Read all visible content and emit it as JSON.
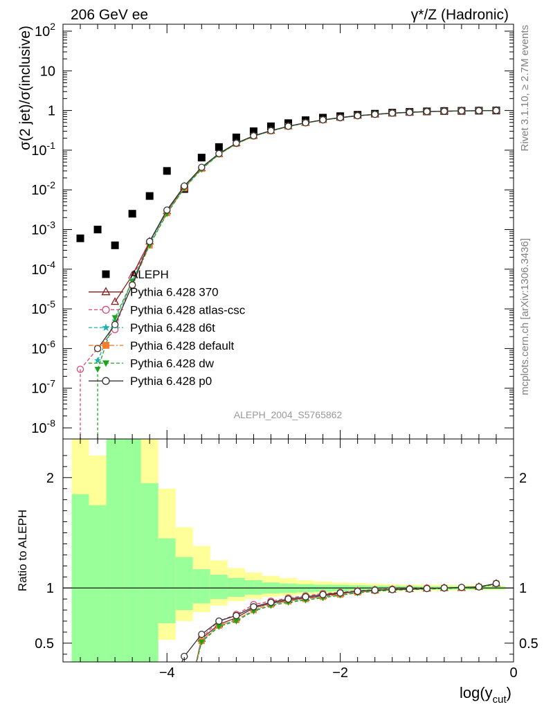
{
  "header": {
    "left": "206 GeV ee",
    "right": "γ*/Z (Hadronic)"
  },
  "side_text": {
    "rivet": "Rivet 3.1.10, ≥ 2.7M events",
    "mcplots": "mcplots.cern.ch [arXiv:1306.3436]"
  },
  "analysis_label": "ALEPH_2004_S5765862",
  "chart_data": [
    {
      "type": "scatter",
      "panel": "main",
      "ylabel": "σ(2 jet)/σ(inclusive)",
      "yscale": "log",
      "ylim": [
        5e-09,
        150
      ],
      "xlim": [
        -5.2,
        0
      ],
      "y_ticks": [
        "10^-8",
        "10^-7",
        "10^-6",
        "10^-5",
        "10^-4",
        "10^-3",
        "10^-2",
        "10^-1",
        "1",
        "10",
        "10^2"
      ],
      "legend_position": "middle-left",
      "series": [
        {
          "name": "ALEPH",
          "color": "#000000",
          "marker": "filled-square",
          "x": [
            -5.0,
            -4.8,
            -4.6,
            -4.4,
            -4.2,
            -4.0,
            -3.8,
            -3.6,
            -3.4,
            -3.2,
            -3.0,
            -2.8,
            -2.6,
            -2.4,
            -2.2,
            -2.0,
            -1.8,
            -1.6,
            -1.4,
            -1.2,
            -1.0,
            -0.8,
            -0.6,
            -0.4,
            -0.2
          ],
          "y": [
            0.0006,
            0.001,
            0.0004,
            0.0025,
            0.007,
            0.03,
            0.0105,
            0.065,
            0.12,
            0.21,
            0.3,
            0.4,
            0.48,
            0.57,
            0.66,
            0.72,
            0.78,
            0.83,
            0.88,
            0.92,
            0.95,
            0.97,
            0.98,
            0.99,
            1.0
          ]
        },
        {
          "name": "Pythia 6.428 370",
          "color": "#8b1a1a",
          "marker": "open-triangle",
          "line": "solid",
          "x": [
            -4.6,
            -4.4,
            -4.2,
            -4.0,
            -3.8,
            -3.6,
            -3.4,
            -3.2,
            -3.0,
            -2.8,
            -2.6,
            -2.4,
            -2.2,
            -2.0,
            -1.8,
            -1.6,
            -1.4,
            -1.2,
            -1.0,
            -0.8,
            -0.6,
            -0.4,
            -0.2
          ],
          "y": [
            1.5e-05,
            7e-05,
            0.0005,
            0.0029,
            0.012,
            0.035,
            0.08,
            0.15,
            0.23,
            0.31,
            0.4,
            0.49,
            0.58,
            0.66,
            0.74,
            0.8,
            0.86,
            0.9,
            0.94,
            0.96,
            0.98,
            0.99,
            1.0
          ]
        },
        {
          "name": "Pythia 6.428 atlas-csc",
          "color": "#e0446b",
          "marker": "open-circle",
          "line": "dashed",
          "x": [
            -5.0,
            -4.8,
            -4.6,
            -4.4,
            -4.2,
            -4.0,
            -3.8,
            -3.6,
            -3.4,
            -3.2,
            -3.0,
            -2.8,
            -2.6,
            -2.4,
            -2.2,
            -2.0,
            -1.8,
            -1.6,
            -1.4,
            -1.2,
            -1.0,
            -0.8,
            -0.6,
            -0.4,
            -0.2
          ],
          "y": [
            3e-07,
            1e-06,
            3e-06,
            6e-05,
            0.0005,
            0.003,
            0.012,
            0.036,
            0.082,
            0.15,
            0.23,
            0.31,
            0.4,
            0.49,
            0.58,
            0.66,
            0.74,
            0.8,
            0.86,
            0.9,
            0.94,
            0.96,
            0.98,
            0.99,
            1.0
          ]
        },
        {
          "name": "Pythia 6.428 d6t",
          "color": "#20b2aa",
          "marker": "star",
          "line": "dashed",
          "x": [
            -4.8,
            -4.6,
            -4.4,
            -4.2,
            -4.0,
            -3.8,
            -3.6,
            -3.4,
            -3.2,
            -3.0,
            -2.8,
            -2.6,
            -2.4,
            -2.2,
            -2.0,
            -1.8,
            -1.6,
            -1.4,
            -1.2,
            -1.0,
            -0.8,
            -0.6,
            -0.4,
            -0.2
          ],
          "y": [
            5e-07,
            5e-06,
            5e-05,
            0.00045,
            0.0027,
            0.0115,
            0.034,
            0.079,
            0.145,
            0.225,
            0.305,
            0.395,
            0.485,
            0.575,
            0.655,
            0.735,
            0.795,
            0.855,
            0.895,
            0.935,
            0.955,
            0.975,
            0.99,
            1.0
          ]
        },
        {
          "name": "Pythia 6.428 default",
          "color": "#f08030",
          "marker": "filled-square",
          "line": "dash-dot",
          "x": [
            -4.8,
            -4.6,
            -4.4,
            -4.2,
            -4.0,
            -3.8,
            -3.6,
            -3.4,
            -3.2,
            -3.0,
            -2.8,
            -2.6,
            -2.4,
            -2.2,
            -2.0,
            -1.8,
            -1.6,
            -1.4,
            -1.2,
            -1.0,
            -0.8,
            -0.6,
            -0.4,
            -0.2
          ],
          "y": [
            1e-06,
            4e-06,
            4e-05,
            0.0004,
            0.0026,
            0.011,
            0.034,
            0.079,
            0.145,
            0.225,
            0.305,
            0.395,
            0.485,
            0.575,
            0.655,
            0.735,
            0.795,
            0.855,
            0.895,
            0.935,
            0.955,
            0.975,
            0.99,
            1.0
          ]
        },
        {
          "name": "Pythia 6.428 dw",
          "color": "#1aa51a",
          "marker": "filled-triangle-down",
          "line": "dashed",
          "x": [
            -4.8,
            -4.6,
            -4.4,
            -4.2,
            -4.0,
            -3.8,
            -3.6,
            -3.4,
            -3.2,
            -3.0,
            -2.8,
            -2.6,
            -2.4,
            -2.2,
            -2.0,
            -1.8,
            -1.6,
            -1.4,
            -1.2,
            -1.0,
            -0.8,
            -0.6,
            -0.4,
            -0.2
          ],
          "y": [
            3e-07,
            6e-06,
            5e-05,
            0.0004,
            0.0025,
            0.011,
            0.033,
            0.078,
            0.144,
            0.224,
            0.304,
            0.394,
            0.484,
            0.574,
            0.654,
            0.734,
            0.794,
            0.854,
            0.894,
            0.934,
            0.954,
            0.974,
            0.99,
            1.0
          ]
        },
        {
          "name": "Pythia 6.428 p0",
          "color": "#333333",
          "marker": "open-circle",
          "line": "solid",
          "x": [
            -4.8,
            -4.6,
            -4.4,
            -4.2,
            -4.0,
            -3.8,
            -3.6,
            -3.4,
            -3.2,
            -3.0,
            -2.8,
            -2.6,
            -2.4,
            -2.2,
            -2.0,
            -1.8,
            -1.6,
            -1.4,
            -1.2,
            -1.0,
            -0.8,
            -0.6,
            -0.4,
            -0.2
          ],
          "y": [
            1e-06,
            4e-06,
            4e-05,
            0.0005,
            0.0031,
            0.0125,
            0.037,
            0.082,
            0.15,
            0.23,
            0.31,
            0.4,
            0.49,
            0.58,
            0.66,
            0.74,
            0.8,
            0.86,
            0.9,
            0.94,
            0.96,
            0.98,
            0.99,
            1.0
          ]
        }
      ]
    },
    {
      "type": "line",
      "panel": "ratio",
      "ylabel": "Ratio to ALEPH",
      "xlabel_base": "log(y",
      "xlabel_sub": "cut",
      "xlabel_end": ")",
      "ylim": [
        0.33,
        2.35
      ],
      "xlim": [
        -5.2,
        0
      ],
      "x_ticks": [
        -4,
        -2,
        0
      ],
      "x_tick_labels": [
        "−4",
        "−2",
        "0"
      ],
      "y_ticks": [
        0.5,
        1,
        2
      ],
      "y_tick_labels": [
        "0.5",
        "1",
        "2"
      ],
      "bands": {
        "bin_edges": [
          -5.1,
          -4.9,
          -4.7,
          -4.5,
          -4.3,
          -4.1,
          -3.9,
          -3.7,
          -3.5,
          -3.3,
          -3.1,
          -2.9,
          -2.7,
          -2.5,
          -2.3,
          -2.1,
          -1.9,
          -1.7,
          -1.5,
          -1.3,
          -1.1,
          -0.9,
          -0.7,
          -0.5,
          -0.3,
          -0.1
        ],
        "yellow_low": [
          0.3,
          0.45,
          0.3,
          0.3,
          0.3,
          0.53,
          0.7,
          0.78,
          0.84,
          0.88,
          0.9,
          0.92,
          0.93,
          0.94,
          0.95,
          0.955,
          0.96,
          0.965,
          0.97,
          0.975,
          0.975,
          0.975,
          0.98,
          0.98,
          0.98
        ],
        "yellow_high": [
          2.4,
          2.2,
          2.4,
          2.4,
          2.4,
          1.9,
          1.55,
          1.38,
          1.25,
          1.18,
          1.14,
          1.11,
          1.09,
          1.07,
          1.06,
          1.05,
          1.045,
          1.04,
          1.035,
          1.03,
          1.03,
          1.03,
          1.025,
          1.025,
          1.02
        ],
        "green_low": [
          0.3,
          0.3,
          0.3,
          0.3,
          0.3,
          0.68,
          0.8,
          0.86,
          0.9,
          0.92,
          0.94,
          0.95,
          0.955,
          0.96,
          0.965,
          0.97,
          0.975,
          0.978,
          0.98,
          0.982,
          0.984,
          0.985,
          0.986,
          0.987,
          0.988
        ],
        "green_high": [
          1.85,
          1.75,
          2.4,
          2.4,
          1.95,
          1.45,
          1.28,
          1.17,
          1.12,
          1.09,
          1.07,
          1.05,
          1.04,
          1.035,
          1.03,
          1.028,
          1.025,
          1.022,
          1.02,
          1.018,
          1.016,
          1.015,
          1.014,
          1.013,
          1.012
        ]
      },
      "series": [
        {
          "name": "Pythia 6.428 370",
          "color": "#8b1a1a",
          "marker": "open-triangle",
          "line": "solid",
          "x": [
            -3.6,
            -3.4,
            -3.2,
            -3.0,
            -2.8,
            -2.6,
            -2.4,
            -2.2,
            -2.0,
            -1.8,
            -1.6,
            -1.4,
            -1.2,
            -1.0,
            -0.8,
            -0.6,
            -0.4,
            -0.2
          ],
          "y": [
            0.54,
            0.67,
            0.73,
            0.82,
            0.86,
            0.89,
            0.91,
            0.93,
            0.95,
            0.97,
            0.98,
            0.985,
            0.99,
            0.995,
            1.0,
            1.0,
            1.01,
            1.04
          ]
        },
        {
          "name": "Pythia 6.428 atlas-csc",
          "color": "#e0446b",
          "marker": "open-circle",
          "line": "dashed",
          "x": [
            -3.6,
            -3.4,
            -3.2,
            -3.0,
            -2.8,
            -2.6,
            -2.4,
            -2.2,
            -2.0,
            -1.8,
            -1.6,
            -1.4,
            -1.2,
            -1.0,
            -0.8,
            -0.6,
            -0.4,
            -0.2
          ],
          "y": [
            0.55,
            0.7,
            0.76,
            0.85,
            0.88,
            0.91,
            0.93,
            0.95,
            0.96,
            0.975,
            0.985,
            0.99,
            0.995,
            1.0,
            1.0,
            1.005,
            1.01,
            1.04
          ]
        },
        {
          "name": "Pythia 6.428 d6t",
          "color": "#20b2aa",
          "marker": "star",
          "line": "dashed",
          "x": [
            -3.6,
            -3.4,
            -3.2,
            -3.0,
            -2.8,
            -2.6,
            -2.4,
            -2.2,
            -2.0,
            -1.8,
            -1.6,
            -1.4,
            -1.2,
            -1.0,
            -0.8,
            -0.6,
            -0.4,
            -0.2
          ],
          "y": [
            0.52,
            0.66,
            0.71,
            0.8,
            0.85,
            0.88,
            0.9,
            0.92,
            0.94,
            0.96,
            0.975,
            0.985,
            0.99,
            0.995,
            1.0,
            1.0,
            1.01,
            1.04
          ]
        },
        {
          "name": "Pythia 6.428 default",
          "color": "#f08030",
          "marker": "filled-square",
          "line": "dash-dot",
          "x": [
            -3.6,
            -3.4,
            -3.2,
            -3.0,
            -2.8,
            -2.6,
            -2.4,
            -2.2,
            -2.0,
            -1.8,
            -1.6,
            -1.4,
            -1.2,
            -1.0,
            -0.8,
            -0.6,
            -0.4,
            -0.2
          ],
          "y": [
            0.52,
            0.66,
            0.71,
            0.8,
            0.85,
            0.88,
            0.9,
            0.92,
            0.94,
            0.96,
            0.975,
            0.985,
            0.99,
            0.995,
            1.0,
            1.0,
            1.01,
            1.04
          ]
        },
        {
          "name": "Pythia 6.428 dw",
          "color": "#1aa51a",
          "marker": "filled-triangle-down",
          "line": "dashed",
          "x": [
            -3.6,
            -3.4,
            -3.2,
            -3.0,
            -2.8,
            -2.6,
            -2.4,
            -2.2,
            -2.0,
            -1.8,
            -1.6,
            -1.4,
            -1.2,
            -1.0,
            -0.8,
            -0.6,
            -0.4,
            -0.2
          ],
          "y": [
            0.51,
            0.65,
            0.7,
            0.79,
            0.84,
            0.87,
            0.89,
            0.91,
            0.935,
            0.955,
            0.97,
            0.98,
            0.985,
            0.99,
            0.995,
            1.0,
            1.005,
            1.035
          ]
        },
        {
          "name": "Pythia 6.428 p0",
          "color": "#333333",
          "marker": "open-circle",
          "line": "solid",
          "x": [
            -3.8,
            -3.6,
            -3.4,
            -3.2,
            -3.0,
            -2.8,
            -2.6,
            -2.4,
            -2.2,
            -2.0,
            -1.8,
            -1.6,
            -1.4,
            -1.2,
            -1.0,
            -0.8,
            -0.6,
            -0.4,
            -0.2
          ],
          "y": [
            0.38,
            0.58,
            0.7,
            0.75,
            0.83,
            0.87,
            0.9,
            0.92,
            0.94,
            0.955,
            0.97,
            0.98,
            0.985,
            0.99,
            0.995,
            1.0,
            1.005,
            1.01,
            1.04
          ]
        }
      ]
    }
  ]
}
